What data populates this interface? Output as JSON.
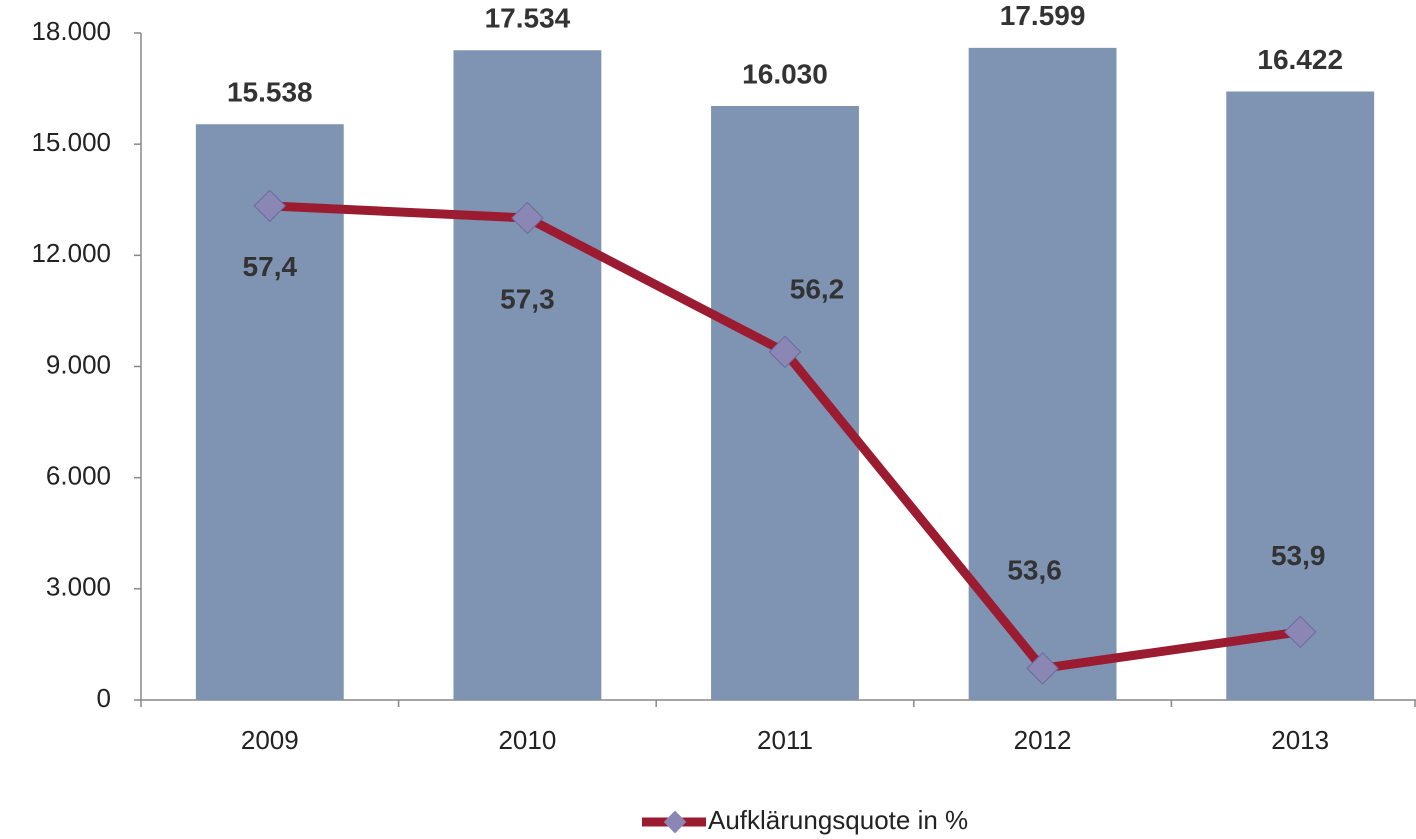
{
  "chart_data": {
    "type": "bar+line",
    "categories": [
      "2009",
      "2010",
      "2011",
      "2012",
      "2013"
    ],
    "series": [
      {
        "color": "#7f93b3",
        "values": [
          15538,
          17534,
          16030,
          17599,
          16422
        ],
        "value_labels": [
          "15.538",
          "17.534",
          "16.030",
          "17.599",
          "16.422"
        ]
      },
      {
        "name": "Aufklärungsquote in %",
        "color": "#9b1c31",
        "marker_color": "#8a87b5",
        "axis": "y2",
        "values": [
          57.4,
          57.3,
          56.2,
          53.6,
          53.9
        ],
        "value_labels": [
          "57,4",
          "57,3",
          "56,2",
          "53,6",
          "53,9"
        ]
      }
    ],
    "ylim": [
      0,
      18000
    ],
    "yticks": [
      0,
      {
        "value": 3000,
        "label": "3.000"
      },
      {
        "value": 6000,
        "label": "6.000"
      },
      {
        "value": 9000,
        "label": "9.000"
      },
      {
        "value": 12000,
        "label": "12.000"
      },
      {
        "value": 15000,
        "label": "15.000"
      },
      {
        "value": 18000,
        "label": "18.000"
      }
    ],
    "y2lim": [
      53.34,
      58.82
    ],
    "grid": false,
    "legend": "bottom"
  }
}
